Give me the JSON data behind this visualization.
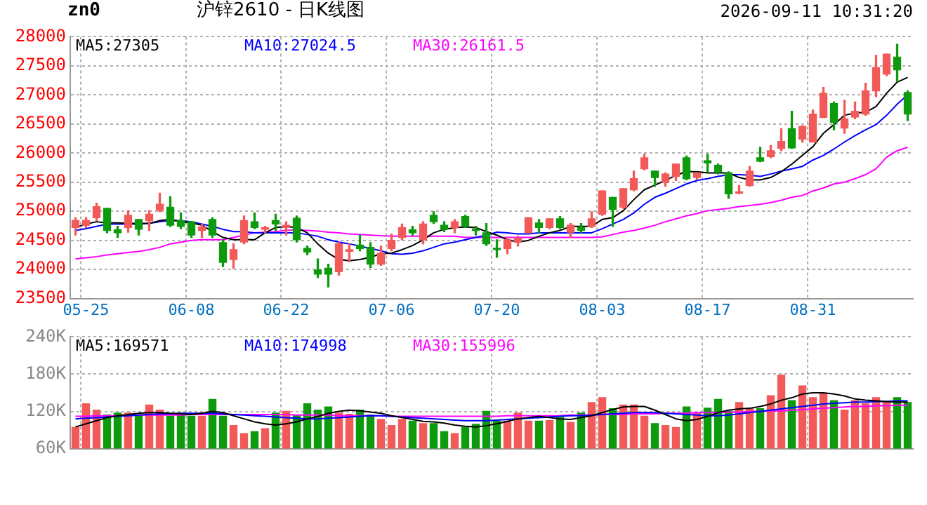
{
  "chart_data": [
    {
      "type": "candlestick",
      "title": "沪锌2610 - 日K线图",
      "subtitle": "zn0",
      "annotations": [
        "2026-09-11 10:31:20"
      ],
      "categories": [
        null,
        "05-25",
        null,
        null,
        null,
        null,
        null,
        null,
        null,
        null,
        null,
        "06-08",
        null,
        null,
        null,
        null,
        null,
        null,
        null,
        null,
        "06-22",
        null,
        null,
        null,
        null,
        null,
        null,
        null,
        null,
        null,
        "07-06",
        null,
        null,
        null,
        null,
        null,
        null,
        null,
        null,
        null,
        "07-20",
        null,
        null,
        null,
        null,
        null,
        null,
        null,
        null,
        null,
        "08-03",
        null,
        null,
        null,
        null,
        null,
        null,
        null,
        null,
        null,
        "08-17",
        null,
        null,
        null,
        null,
        null,
        null,
        null,
        null,
        null,
        "08-31",
        null,
        null,
        null,
        null,
        null,
        null,
        null,
        null,
        null
      ],
      "ohlc": [
        [
          24720,
          24890,
          24590,
          24840
        ],
        [
          24760,
          24890,
          24720,
          24840
        ],
        [
          24890,
          25140,
          24840,
          25080
        ],
        [
          25050,
          25050,
          24630,
          24670
        ],
        [
          24680,
          24740,
          24550,
          24630
        ],
        [
          24720,
          25010,
          24640,
          24930
        ],
        [
          24860,
          24860,
          24590,
          24690
        ],
        [
          24840,
          25010,
          24670,
          24950
        ],
        [
          25020,
          25310,
          24990,
          25120
        ],
        [
          25070,
          25250,
          24740,
          24760
        ],
        [
          24840,
          24970,
          24700,
          24740
        ],
        [
          24820,
          24820,
          24550,
          24590
        ],
        [
          24670,
          24780,
          24550,
          24730
        ],
        [
          24860,
          24890,
          24550,
          24590
        ],
        [
          24460,
          24510,
          24050,
          24120
        ],
        [
          24170,
          24440,
          24020,
          24340
        ],
        [
          24470,
          24920,
          24440,
          24840
        ],
        [
          24820,
          24970,
          24700,
          24720
        ],
        [
          24690,
          24740,
          24630,
          24720
        ],
        [
          24840,
          24950,
          24670,
          24780
        ],
        [
          24720,
          24820,
          24590,
          24760
        ],
        [
          24880,
          24920,
          24470,
          24510
        ],
        [
          24360,
          24400,
          24250,
          24300
        ],
        [
          23990,
          24180,
          23860,
          23920
        ],
        [
          24020,
          24090,
          23700,
          23920
        ],
        [
          23960,
          24460,
          23900,
          24440
        ],
        [
          24310,
          24440,
          24130,
          24340
        ],
        [
          24420,
          24590,
          24320,
          24360
        ],
        [
          24380,
          24460,
          24030,
          24090
        ],
        [
          24090,
          24400,
          24070,
          24280
        ],
        [
          24360,
          24610,
          24320,
          24500
        ],
        [
          24550,
          24780,
          24510,
          24720
        ],
        [
          24680,
          24740,
          24590,
          24630
        ],
        [
          24510,
          24820,
          24440,
          24780
        ],
        [
          24930,
          24990,
          24790,
          24820
        ],
        [
          24760,
          24820,
          24650,
          24690
        ],
        [
          24720,
          24860,
          24630,
          24820
        ],
        [
          24910,
          24930,
          24720,
          24740
        ],
        [
          24690,
          24740,
          24590,
          24670
        ],
        [
          24630,
          24790,
          24410,
          24440
        ],
        [
          24360,
          24510,
          24210,
          24340
        ],
        [
          24360,
          24550,
          24270,
          24510
        ],
        [
          24470,
          24570,
          24400,
          24530
        ],
        [
          24630,
          24890,
          24630,
          24890
        ],
        [
          24800,
          24860,
          24630,
          24720
        ],
        [
          24720,
          24870,
          24700,
          24870
        ],
        [
          24870,
          24910,
          24700,
          24720
        ],
        [
          24640,
          24790,
          24550,
          24760
        ],
        [
          24720,
          24790,
          24640,
          24670
        ],
        [
          24740,
          24990,
          24720,
          24870
        ],
        [
          24950,
          25350,
          24930,
          25350
        ],
        [
          25240,
          25240,
          24740,
          25030
        ],
        [
          25070,
          25390,
          25050,
          25390
        ],
        [
          25370,
          25690,
          25350,
          25560
        ],
        [
          25730,
          25980,
          25710,
          25920
        ],
        [
          25690,
          25690,
          25430,
          25580
        ],
        [
          25500,
          25660,
          25430,
          25640
        ],
        [
          25600,
          25810,
          25530,
          25810
        ],
        [
          25920,
          25950,
          25540,
          25560
        ],
        [
          25580,
          25660,
          25540,
          25660
        ],
        [
          25870,
          25980,
          25680,
          25830
        ],
        [
          25790,
          25810,
          25640,
          25680
        ],
        [
          25660,
          25680,
          25220,
          25300
        ],
        [
          25310,
          25440,
          25300,
          25330
        ],
        [
          25440,
          25770,
          25430,
          25690
        ],
        [
          25920,
          26100,
          25850,
          25860
        ],
        [
          25940,
          26130,
          25920,
          26040
        ],
        [
          26080,
          26420,
          26040,
          26200
        ],
        [
          26420,
          26720,
          26080,
          26090
        ],
        [
          26240,
          26470,
          26190,
          26460
        ],
        [
          26190,
          26740,
          26190,
          26670
        ],
        [
          26610,
          27130,
          26610,
          27030
        ],
        [
          26850,
          26880,
          26400,
          26530
        ],
        [
          26430,
          26910,
          26340,
          26590
        ],
        [
          26620,
          26880,
          26590,
          26720
        ],
        [
          26670,
          27200,
          26650,
          27070
        ],
        [
          27070,
          27680,
          26970,
          27470
        ],
        [
          27360,
          27700,
          27330,
          27700
        ],
        [
          27650,
          27870,
          27230,
          27430
        ],
        [
          27040,
          27070,
          26560,
          26670
        ]
      ],
      "colors": [
        "#f25a5a",
        "#f25a5a",
        "#f25a5a",
        "#0d9a0d",
        "#0d9a0d",
        "#f25a5a",
        "#0d9a0d",
        "#f25a5a",
        "#f25a5a",
        "#0d9a0d",
        "#0d9a0d",
        "#0d9a0d",
        "#f25a5a",
        "#0d9a0d",
        "#0d9a0d",
        "#f25a5a",
        "#f25a5a",
        "#0d9a0d",
        "#f25a5a",
        "#0d9a0d",
        "#f25a5a",
        "#0d9a0d",
        "#0d9a0d",
        "#0d9a0d",
        "#0d9a0d",
        "#f25a5a",
        "#f25a5a",
        "#0d9a0d",
        "#0d9a0d",
        "#f25a5a",
        "#f25a5a",
        "#f25a5a",
        "#0d9a0d",
        "#f25a5a",
        "#0d9a0d",
        "#0d9a0d",
        "#f25a5a",
        "#0d9a0d",
        "#0d9a0d",
        "#0d9a0d",
        "#0d9a0d",
        "#f25a5a",
        "#f25a5a",
        "#f25a5a",
        "#0d9a0d",
        "#f25a5a",
        "#0d9a0d",
        "#f25a5a",
        "#0d9a0d",
        "#f25a5a",
        "#f25a5a",
        "#0d9a0d",
        "#f25a5a",
        "#f25a5a",
        "#f25a5a",
        "#0d9a0d",
        "#f25a5a",
        "#f25a5a",
        "#0d9a0d",
        "#f25a5a",
        "#0d9a0d",
        "#0d9a0d",
        "#0d9a0d",
        "#f25a5a",
        "#f25a5a",
        "#0d9a0d",
        "#f25a5a",
        "#f25a5a",
        "#0d9a0d",
        "#f25a5a",
        "#f25a5a",
        "#f25a5a",
        "#0d9a0d",
        "#f25a5a",
        "#f25a5a",
        "#f25a5a",
        "#f25a5a",
        "#f25a5a",
        "#0d9a0d",
        "#0d9a0d"
      ],
      "series": [
        {
          "type": "line",
          "name": "MA5:27305",
          "color": "#000000",
          "values": [
            24720,
            24780,
            24820,
            24800,
            24800,
            24790,
            24790,
            24790,
            24840,
            24860,
            24820,
            24800,
            24760,
            24650,
            24550,
            24510,
            24510,
            24510,
            24630,
            24720,
            24740,
            24720,
            24630,
            24440,
            24280,
            24170,
            24150,
            24170,
            24210,
            24270,
            24280,
            24340,
            24410,
            24510,
            24630,
            24690,
            24720,
            24730,
            24720,
            24650,
            24590,
            24510,
            24470,
            24500,
            24570,
            24630,
            24670,
            24740,
            24740,
            24740,
            24860,
            24890,
            25010,
            25200,
            25370,
            25450,
            25530,
            25620,
            25680,
            25680,
            25660,
            25660,
            25660,
            25580,
            25540,
            25540,
            25580,
            25680,
            25810,
            25960,
            26110,
            26340,
            26490,
            26650,
            26690,
            26700,
            26800,
            27030,
            27220,
            27300
          ]
        },
        {
          "type": "line",
          "name": "MA10:27024.5",
          "color": "#0000ff",
          "values": [
            24670,
            24700,
            24740,
            24780,
            24780,
            24780,
            24780,
            24790,
            24820,
            24840,
            24840,
            24820,
            24780,
            24740,
            24690,
            24650,
            24650,
            24630,
            24630,
            24630,
            24630,
            24630,
            24600,
            24570,
            24510,
            24470,
            24440,
            24400,
            24360,
            24320,
            24270,
            24260,
            24280,
            24320,
            24380,
            24440,
            24470,
            24510,
            24550,
            24590,
            24640,
            24630,
            24610,
            24610,
            24630,
            24630,
            24630,
            24630,
            24630,
            24630,
            24700,
            24780,
            24860,
            24970,
            25120,
            25240,
            25310,
            25390,
            25470,
            25530,
            25560,
            25600,
            25630,
            25630,
            25620,
            25600,
            25640,
            25690,
            25730,
            25770,
            25880,
            25960,
            26070,
            26190,
            26300,
            26400,
            26490,
            26650,
            26840,
            27000
          ]
        },
        {
          "type": "line",
          "name": "MA30:26161.5",
          "color": "#ff00ff",
          "values": [
            24180,
            24200,
            24220,
            24250,
            24270,
            24290,
            24310,
            24340,
            24380,
            24440,
            24470,
            24500,
            24510,
            24510,
            24510,
            24550,
            24590,
            24630,
            24640,
            24650,
            24670,
            24680,
            24670,
            24660,
            24640,
            24630,
            24610,
            24600,
            24590,
            24580,
            24570,
            24570,
            24570,
            24570,
            24570,
            24570,
            24570,
            24550,
            24550,
            24550,
            24550,
            24550,
            24550,
            24550,
            24550,
            24550,
            24550,
            24550,
            24550,
            24550,
            24560,
            24600,
            24640,
            24670,
            24710,
            24760,
            24820,
            24870,
            24920,
            24960,
            25010,
            25030,
            25050,
            25080,
            25100,
            25120,
            25150,
            25190,
            25240,
            25270,
            25350,
            25400,
            25470,
            25500,
            25560,
            25630,
            25730,
            25930,
            26040,
            26100
          ]
        }
      ],
      "ylim": [
        23500,
        28000
      ],
      "yticks": [
        23500,
        24000,
        24500,
        25000,
        25500,
        26000,
        26500,
        27000,
        27500,
        28000
      ],
      "grid": true,
      "legend": "top left"
    },
    {
      "type": "bar",
      "tick_labels": "y",
      "categories": [
        null,
        null,
        null,
        null,
        null,
        null,
        null,
        null,
        null,
        null,
        null,
        null,
        null,
        null,
        null,
        null,
        null,
        null,
        null,
        null,
        null,
        null,
        null,
        null,
        null,
        null,
        null,
        null,
        null,
        null,
        null,
        null,
        null,
        null,
        null,
        null,
        null,
        null,
        null,
        null,
        null,
        null,
        null,
        null,
        null,
        null,
        null,
        null,
        null,
        null,
        null,
        null,
        null,
        null,
        null,
        null,
        null,
        null,
        null,
        null,
        null,
        null,
        null,
        null,
        null,
        null,
        null,
        null,
        null,
        null,
        null,
        null,
        null,
        null,
        null,
        null,
        null,
        null,
        null,
        null
      ],
      "values": [
        95000,
        133000,
        123000,
        115000,
        118000,
        118000,
        113000,
        131000,
        123000,
        113000,
        118000,
        113000,
        113000,
        140000,
        113000,
        98000,
        85000,
        88000,
        93000,
        118000,
        121000,
        115000,
        133000,
        123000,
        128000,
        118000,
        116000,
        123000,
        115000,
        108000,
        98000,
        108000,
        105000,
        101000,
        101000,
        88000,
        85000,
        95000,
        100000,
        121000,
        105000,
        105000,
        118000,
        105000,
        105000,
        106000,
        111000,
        103000,
        118000,
        135000,
        143000,
        125000,
        131000,
        131000,
        113000,
        101000,
        98000,
        95000,
        128000,
        118000,
        126000,
        140000,
        121000,
        135000,
        125000,
        125000,
        146000,
        179000,
        138000,
        162000,
        143000,
        150000,
        138000,
        123000,
        138000,
        133000,
        143000,
        135000,
        143000,
        135000
      ],
      "colors": [
        "#f25a5a",
        "#f25a5a",
        "#f25a5a",
        "#0d9a0d",
        "#0d9a0d",
        "#f25a5a",
        "#0d9a0d",
        "#f25a5a",
        "#f25a5a",
        "#0d9a0d",
        "#0d9a0d",
        "#0d9a0d",
        "#f25a5a",
        "#0d9a0d",
        "#0d9a0d",
        "#f25a5a",
        "#f25a5a",
        "#0d9a0d",
        "#f25a5a",
        "#0d9a0d",
        "#f25a5a",
        "#0d9a0d",
        "#0d9a0d",
        "#0d9a0d",
        "#0d9a0d",
        "#f25a5a",
        "#f25a5a",
        "#0d9a0d",
        "#0d9a0d",
        "#f25a5a",
        "#f25a5a",
        "#f25a5a",
        "#0d9a0d",
        "#f25a5a",
        "#0d9a0d",
        "#0d9a0d",
        "#f25a5a",
        "#0d9a0d",
        "#0d9a0d",
        "#0d9a0d",
        "#0d9a0d",
        "#f25a5a",
        "#f25a5a",
        "#f25a5a",
        "#0d9a0d",
        "#f25a5a",
        "#0d9a0d",
        "#f25a5a",
        "#0d9a0d",
        "#f25a5a",
        "#f25a5a",
        "#0d9a0d",
        "#f25a5a",
        "#f25a5a",
        "#f25a5a",
        "#0d9a0d",
        "#f25a5a",
        "#f25a5a",
        "#0d9a0d",
        "#f25a5a",
        "#0d9a0d",
        "#0d9a0d",
        "#0d9a0d",
        "#f25a5a",
        "#f25a5a",
        "#0d9a0d",
        "#f25a5a",
        "#f25a5a",
        "#0d9a0d",
        "#f25a5a",
        "#f25a5a",
        "#f25a5a",
        "#0d9a0d",
        "#f25a5a",
        "#f25a5a",
        "#f25a5a",
        "#f25a5a",
        "#f25a5a",
        "#0d9a0d",
        "#0d9a0d"
      ],
      "series": [
        {
          "type": "line",
          "name": "MA5:169571",
          "color": "#000000",
          "values": [
            95000,
            100000,
            105000,
            110000,
            113000,
            115000,
            117000,
            118000,
            118000,
            117000,
            116000,
            115000,
            117000,
            120000,
            118000,
            113000,
            108000,
            103000,
            100000,
            98000,
            100000,
            103000,
            108000,
            112000,
            117000,
            120000,
            122000,
            121000,
            119000,
            117000,
            113000,
            110000,
            107000,
            104000,
            103000,
            101000,
            98000,
            96000,
            95000,
            97000,
            100000,
            104000,
            108000,
            110000,
            112000,
            110000,
            108000,
            107000,
            110000,
            113000,
            118000,
            123000,
            127000,
            128000,
            128000,
            122000,
            115000,
            108000,
            105000,
            107000,
            112000,
            118000,
            122000,
            124000,
            125000,
            128000,
            132000,
            138000,
            142000,
            148000,
            150000,
            150000,
            148000,
            145000,
            140000,
            138000,
            137000,
            136000,
            135000,
            135000
          ]
        },
        {
          "type": "line",
          "name": "MA10:174998",
          "color": "#0000ff",
          "values": [
            108000,
            109000,
            110000,
            111000,
            112000,
            113000,
            114000,
            115000,
            116000,
            116000,
            117000,
            117000,
            117000,
            117000,
            116000,
            115000,
            114000,
            113000,
            112000,
            111000,
            110000,
            109000,
            108000,
            108000,
            109000,
            110000,
            111000,
            112000,
            113000,
            113000,
            112000,
            111000,
            110000,
            109000,
            108000,
            107000,
            106000,
            105000,
            105000,
            105000,
            106000,
            107000,
            108000,
            109000,
            110000,
            111000,
            112000,
            113000,
            113000,
            114000,
            115000,
            116000,
            117000,
            118000,
            118000,
            118000,
            117000,
            116000,
            115000,
            114000,
            113000,
            113000,
            114000,
            116000,
            118000,
            120000,
            122000,
            124000,
            126000,
            128000,
            130000,
            132000,
            133000,
            134000,
            135000,
            135000,
            136000,
            136000,
            137000,
            137000
          ]
        },
        {
          "type": "line",
          "name": "MA30:155996",
          "color": "#ff00ff",
          "values": [
            112000,
            112000,
            113000,
            113000,
            113000,
            113000,
            114000,
            114000,
            114000,
            114000,
            114000,
            115000,
            115000,
            115000,
            115000,
            115000,
            115000,
            115000,
            115000,
            115000,
            115000,
            114000,
            114000,
            114000,
            114000,
            113000,
            113000,
            113000,
            113000,
            113000,
            112000,
            112000,
            112000,
            112000,
            112000,
            112000,
            112000,
            112000,
            112000,
            112000,
            112000,
            113000,
            113000,
            113000,
            113000,
            113000,
            113000,
            114000,
            114000,
            114000,
            115000,
            115000,
            115000,
            116000,
            116000,
            116000,
            117000,
            117000,
            117000,
            118000,
            118000,
            118000,
            119000,
            119000,
            120000,
            120000,
            121000,
            121000,
            122000,
            123000,
            124000,
            125000,
            126000,
            127000,
            128000,
            128000,
            129000,
            129000,
            130000,
            130000
          ]
        }
      ],
      "ylim": [
        60000,
        240000
      ],
      "yticks": [
        {
          "value": 60000,
          "label": "60K"
        },
        {
          "value": 120000,
          "label": "120K"
        },
        {
          "value": 180000,
          "label": "180K"
        },
        {
          "value": 240000,
          "label": "240K"
        }
      ],
      "grid": true,
      "legend": "top left"
    }
  ]
}
